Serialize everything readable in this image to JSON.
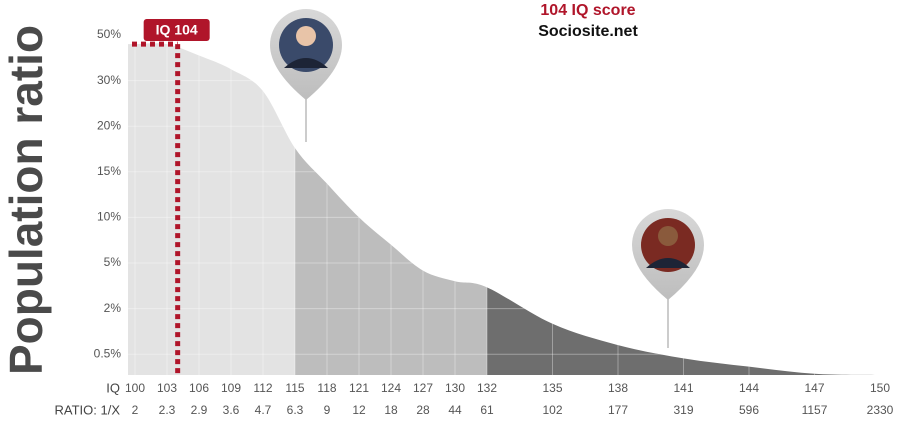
{
  "chart_data": {
    "type": "area",
    "title": "104 IQ score",
    "subtitle": "Sociosite.net",
    "y_label": "Population ratio",
    "x_label": "IQ",
    "ratio_label": "RATIO: 1/X",
    "categories": [
      100,
      103,
      106,
      109,
      112,
      115,
      118,
      121,
      124,
      127,
      130,
      132,
      135,
      138,
      141,
      144,
      147,
      150
    ],
    "ratio": [
      2,
      2.3,
      2.9,
      3.6,
      4.7,
      6.3,
      9,
      12,
      18,
      28,
      44,
      61,
      102,
      177,
      319,
      596,
      1157,
      2330
    ],
    "values": [
      46,
      46,
      41,
      35,
      27.7,
      17.6,
      13.7,
      10,
      7,
      4.5,
      3.8,
      3.4,
      1.5,
      0.8,
      0.4,
      0.2,
      0.03,
      0
    ],
    "ylim": [
      0,
      50
    ],
    "yticks": [
      {
        "value": 50,
        "label": "50%"
      },
      {
        "value": 30,
        "label": "30%"
      },
      {
        "value": 20,
        "label": "20%"
      },
      {
        "value": 15,
        "label": "15%"
      },
      {
        "value": 10,
        "label": "10%"
      },
      {
        "value": 5,
        "label": "5%"
      },
      {
        "value": 2,
        "label": "2%"
      },
      {
        "value": 0.5,
        "label": "0.5%"
      }
    ],
    "bands": [
      {
        "from": 100,
        "to": 115,
        "color": "#e3e3e3"
      },
      {
        "from": 115,
        "to": 132,
        "color": "#bdbdbd"
      },
      {
        "from": 132,
        "to": 150,
        "color": "#6e6e6e"
      }
    ],
    "marker": {
      "value": 104,
      "label": "IQ 104",
      "color": "#b0152a"
    },
    "grid": true
  }
}
